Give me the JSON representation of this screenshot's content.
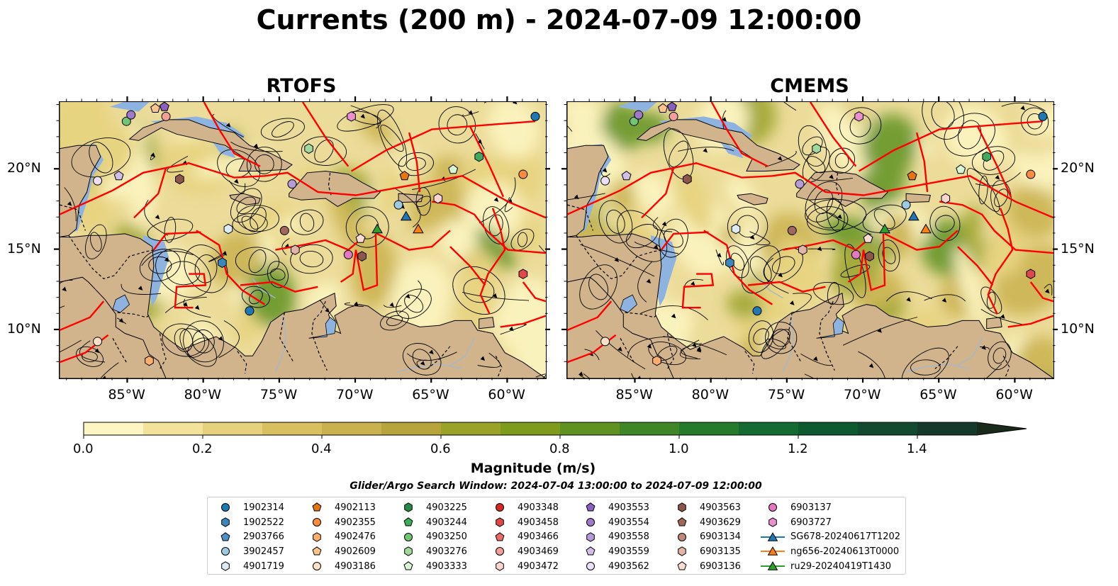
{
  "title": "Currents (200 m) - 2024-07-09 12:00:00",
  "panels": [
    {
      "title": "RTOFS"
    },
    {
      "title": "CMEMS"
    }
  ],
  "axes": {
    "lon_labels": [
      "85°W",
      "80°W",
      "75°W",
      "70°W",
      "65°W",
      "60°W"
    ],
    "lat_labels": [
      "20°N",
      "15°N",
      "10°N"
    ]
  },
  "colorbar": {
    "title": "Magnitude (m/s)",
    "tick_labels": [
      "0.0",
      "0.2",
      "0.4",
      "0.6",
      "0.8",
      "1.0",
      "1.2",
      "1.4"
    ],
    "colors": [
      "#fdf6c3",
      "#f3e39a",
      "#e6d27c",
      "#d8c060",
      "#c9b14d",
      "#b7a43a",
      "#9aa22a",
      "#7e9b1e",
      "#5f9220",
      "#3f8726",
      "#257a2c",
      "#136b31",
      "#0e5a30",
      "#114a2e",
      "#15392a",
      "#172b22",
      "#1a2a1a"
    ]
  },
  "search_window": "Glider/Argo Search Window: 2024-07-04 13:00:00 to 2024-07-09 12:00:00",
  "legend": [
    [
      {
        "label": "1902314",
        "marker": "circle",
        "color": "#1f77b4"
      },
      {
        "label": "1902522",
        "marker": "hexagon",
        "color": "#3a86bd"
      },
      {
        "label": "2903766",
        "marker": "pentagon",
        "color": "#4c92c8"
      },
      {
        "label": "3902457",
        "marker": "circle",
        "color": "#9ecae1"
      },
      {
        "label": "4901719",
        "marker": "hexagon",
        "color": "#deebf7"
      }
    ],
    [
      {
        "label": "4902113",
        "marker": "pentagon",
        "color": "#e6750e"
      },
      {
        "label": "4902355",
        "marker": "circle",
        "color": "#fd8d3c"
      },
      {
        "label": "4902476",
        "marker": "hexagon",
        "color": "#fdae6b"
      },
      {
        "label": "4902609",
        "marker": "pentagon",
        "color": "#fdc58e"
      },
      {
        "label": "4903186",
        "marker": "circle",
        "color": "#fde0c5"
      }
    ],
    [
      {
        "label": "4903225",
        "marker": "hexagon",
        "color": "#238b45"
      },
      {
        "label": "4903244",
        "marker": "pentagon",
        "color": "#41ab5d"
      },
      {
        "label": "4903250",
        "marker": "circle",
        "color": "#74c476"
      },
      {
        "label": "4903276",
        "marker": "hexagon",
        "color": "#a1d99b"
      },
      {
        "label": "4903333",
        "marker": "pentagon",
        "color": "#d9f5d3"
      }
    ],
    [
      {
        "label": "4903348",
        "marker": "circle",
        "color": "#d62728"
      },
      {
        "label": "4903458",
        "marker": "hexagon",
        "color": "#e04848"
      },
      {
        "label": "4903466",
        "marker": "pentagon",
        "color": "#ea6a6a"
      },
      {
        "label": "4903469",
        "marker": "circle",
        "color": "#f4a09a"
      },
      {
        "label": "4903472",
        "marker": "hexagon",
        "color": "#fcd5d0"
      }
    ],
    [
      {
        "label": "4903553",
        "marker": "pentagon",
        "color": "#8a5fbf"
      },
      {
        "label": "4903554",
        "marker": "circle",
        "color": "#9e7ac9"
      },
      {
        "label": "4903558",
        "marker": "hexagon",
        "color": "#b79ad8"
      },
      {
        "label": "4903559",
        "marker": "pentagon",
        "color": "#d2bfe8"
      },
      {
        "label": "4903562",
        "marker": "circle",
        "color": "#ecdff7"
      }
    ],
    [
      {
        "label": "4903563",
        "marker": "hexagon",
        "color": "#8c564b"
      },
      {
        "label": "4903629",
        "marker": "pentagon",
        "color": "#a0685b"
      },
      {
        "label": "6903134",
        "marker": "circle",
        "color": "#c0887b"
      },
      {
        "label": "6903135",
        "marker": "hexagon",
        "color": "#e3b5a6"
      },
      {
        "label": "6903136",
        "marker": "pentagon",
        "color": "#fbdcd2"
      }
    ],
    [
      {
        "label": "6903137",
        "marker": "circle",
        "color": "#e377c2"
      },
      {
        "label": "6903727",
        "marker": "hexagon",
        "color": "#ec8fd0"
      },
      {
        "label": "SG678-20240617T1202",
        "marker": "triangle",
        "color": "#1f77b4"
      },
      {
        "label": "ng656-20240613T0000",
        "marker": "triangle",
        "color": "#ff7f0e"
      },
      {
        "label": "ru29-20240419T1430",
        "marker": "triangle",
        "color": "#2ca02c"
      }
    ]
  ],
  "map_markers": [
    {
      "lon": -58.2,
      "lat": 23.3,
      "marker": "circle",
      "color": "#1f77b4"
    },
    {
      "lon": -78.8,
      "lat": 14.2,
      "marker": "hexagon",
      "color": "#3a86bd"
    },
    {
      "lon": -77.0,
      "lat": 11.2,
      "marker": "circle",
      "color": "#1f77b4"
    },
    {
      "lon": -67.2,
      "lat": 17.8,
      "marker": "circle",
      "color": "#9ecae1"
    },
    {
      "lon": -78.4,
      "lat": 16.3,
      "marker": "hexagon",
      "color": "#deebf7"
    },
    {
      "lon": -66.8,
      "lat": 19.6,
      "marker": "pentagon",
      "color": "#e6750e"
    },
    {
      "lon": -59.0,
      "lat": 19.7,
      "marker": "circle",
      "color": "#fd8d3c"
    },
    {
      "lon": -83.6,
      "lat": 8.1,
      "marker": "hexagon",
      "color": "#fdae6b"
    },
    {
      "lon": -83.2,
      "lat": 23.8,
      "marker": "pentagon",
      "color": "#fdc58e"
    },
    {
      "lon": -82.5,
      "lat": 23.3,
      "marker": "circle",
      "color": "#f4a09a"
    },
    {
      "lon": -61.9,
      "lat": 20.8,
      "marker": "hexagon",
      "color": "#41ab5d"
    },
    {
      "lon": -85.1,
      "lat": 23.0,
      "marker": "circle",
      "color": "#74c476"
    },
    {
      "lon": -73.1,
      "lat": 21.3,
      "marker": "hexagon",
      "color": "#a1d99b"
    },
    {
      "lon": -63.6,
      "lat": 20.0,
      "marker": "pentagon",
      "color": "#d9f5d3"
    },
    {
      "lon": -59.0,
      "lat": 13.5,
      "marker": "hexagon",
      "color": "#e04848"
    },
    {
      "lon": -64.6,
      "lat": 18.2,
      "marker": "hexagon",
      "color": "#fcd5d0"
    },
    {
      "lon": -82.6,
      "lat": 23.9,
      "marker": "pentagon",
      "color": "#8a5fbf"
    },
    {
      "lon": -84.8,
      "lat": 23.4,
      "marker": "circle",
      "color": "#9e7ac9"
    },
    {
      "lon": -74.2,
      "lat": 19.1,
      "marker": "circle",
      "color": "#b79ad8"
    },
    {
      "lon": -85.6,
      "lat": 19.6,
      "marker": "pentagon",
      "color": "#d2bfe8"
    },
    {
      "lon": -87.0,
      "lat": 19.3,
      "marker": "circle",
      "color": "#ecdff7"
    },
    {
      "lon": -81.6,
      "lat": 19.4,
      "marker": "hexagon",
      "color": "#8c564b"
    },
    {
      "lon": -74.7,
      "lat": 16.2,
      "marker": "circle",
      "color": "#a0685b"
    },
    {
      "lon": -69.6,
      "lat": 14.6,
      "marker": "hexagon",
      "color": "#8c564b"
    },
    {
      "lon": -74.0,
      "lat": 15.0,
      "marker": "hexagon",
      "color": "#e3b5a6"
    },
    {
      "lon": -69.7,
      "lat": 15.7,
      "marker": "pentagon",
      "color": "#fbdcd2"
    },
    {
      "lon": -70.5,
      "lat": 14.7,
      "marker": "circle",
      "color": "#e377c2"
    },
    {
      "lon": -70.3,
      "lat": 23.3,
      "marker": "hexagon",
      "color": "#ec8fd0"
    },
    {
      "lon": -87.0,
      "lat": 9.3,
      "marker": "circle",
      "color": "#fde0c5"
    },
    {
      "lon": -66.7,
      "lat": 17.1,
      "marker": "triangle",
      "color": "#1f77b4"
    },
    {
      "lon": -65.9,
      "lat": 16.3,
      "marker": "triangle",
      "color": "#ff7f0e"
    },
    {
      "lon": -68.6,
      "lat": 16.3,
      "marker": "triangle",
      "color": "#2ca02c"
    }
  ]
}
